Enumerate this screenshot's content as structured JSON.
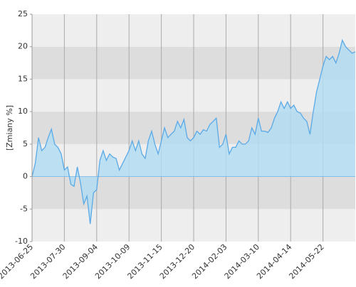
{
  "chart_data": {
    "type": "area",
    "y_label": "[Zmiany %]",
    "categories": [
      "2013-06-25",
      null,
      null,
      null,
      null,
      null,
      null,
      null,
      null,
      null,
      "2013-07-30",
      null,
      null,
      null,
      null,
      null,
      null,
      null,
      null,
      null,
      "2013-09-04",
      null,
      null,
      null,
      null,
      null,
      null,
      null,
      null,
      null,
      "2013-10-09",
      null,
      null,
      null,
      null,
      null,
      null,
      null,
      null,
      null,
      "2013-11-15",
      null,
      null,
      null,
      null,
      null,
      null,
      null,
      null,
      null,
      "2013-12-20",
      null,
      null,
      null,
      null,
      null,
      null,
      null,
      null,
      null,
      "2014-02-03",
      null,
      null,
      null,
      null,
      null,
      null,
      null,
      null,
      null,
      "2014-03-10",
      null,
      null,
      null,
      null,
      null,
      null,
      null,
      null,
      null,
      "2014-04-14",
      null,
      null,
      null,
      null,
      null,
      null,
      null,
      null,
      null,
      "2014-05-22",
      null,
      null,
      null,
      null,
      null,
      null,
      null,
      null,
      null,
      null
    ],
    "values": [
      0,
      2,
      6,
      4,
      4.5,
      6,
      7.3,
      5,
      4.5,
      3.5,
      1,
      1.5,
      -1.2,
      -1.5,
      1.5,
      -1,
      -4.2,
      -3,
      -7.3,
      -2.5,
      -2,
      2.5,
      4,
      2.5,
      3.5,
      3,
      2.8,
      1,
      2,
      3,
      4,
      5.5,
      4,
      5.5,
      3.5,
      2.8,
      5.5,
      7,
      5,
      3.5,
      5.5,
      7.5,
      6,
      6.5,
      7,
      8.5,
      7.5,
      8.8,
      6,
      5.5,
      6,
      7,
      6.5,
      7.2,
      7,
      8,
      8.5,
      9,
      4.5,
      5,
      6.5,
      3.5,
      4.5,
      4.5,
      5.5,
      5,
      5,
      5.5,
      7.5,
      6.5,
      9,
      7,
      7,
      6.8,
      7.5,
      9,
      10,
      11.5,
      10.5,
      11.5,
      10.5,
      11,
      10,
      9.8,
      9,
      8.5,
      6.5,
      10,
      13,
      15,
      17,
      18.5,
      18,
      18.5,
      17.5,
      19,
      21,
      20,
      19.5,
      19,
      19.2
    ],
    "color": "#5aaae8",
    "fill_color": "#b3dcf2",
    "ylim": [
      -10,
      25
    ],
    "yticks": [
      -10,
      -5,
      0,
      5,
      10,
      15,
      20,
      25
    ],
    "grid": true
  }
}
